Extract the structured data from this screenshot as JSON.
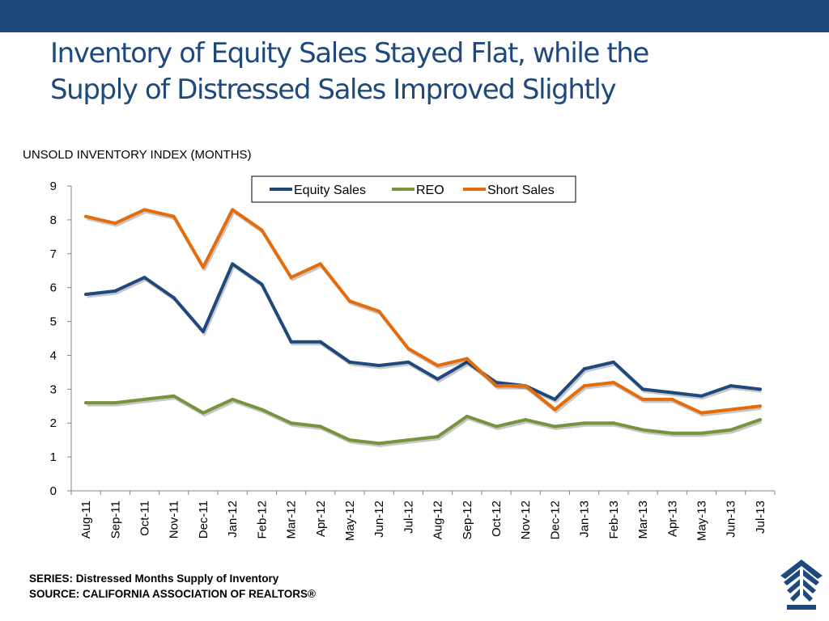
{
  "slide": {
    "title_line1": "Inventory of Equity Sales Stayed Flat, while the",
    "title_line2": "Supply of Distressed Sales Improved Slightly",
    "footer_series": "SERIES: Distressed Months Supply of Inventory",
    "footer_source": "SOURCE:  CALIFORNIA ASSOCIATION OF REALTORS®",
    "header_bar_color": "#1f497d",
    "title_color": "#1f497d",
    "logo_icon": "california-association-of-realtors-logo"
  },
  "chart_data": {
    "type": "line",
    "title": "",
    "ylabel": "UNSOLD INVENTORY INDEX (MONTHS)",
    "xlabel": "",
    "ylim": [
      0,
      9
    ],
    "yticks": [
      0,
      1,
      2,
      3,
      4,
      5,
      6,
      7,
      8,
      9
    ],
    "grid": false,
    "legend_position": "top",
    "categories": [
      "Aug-11",
      "Sep-11",
      "Oct-11",
      "Nov-11",
      "Dec-11",
      "Jan-12",
      "Feb-12",
      "Mar-12",
      "Apr-12",
      "May-12",
      "Jun-12",
      "Jul-12",
      "Aug-12",
      "Sep-12",
      "Oct-12",
      "Nov-12",
      "Dec-12",
      "Jan-13",
      "Feb-13",
      "Mar-13",
      "Apr-13",
      "May-13",
      "Jun-13",
      "Jul-13"
    ],
    "series": [
      {
        "name": "Equity Sales",
        "color": "#1f497d",
        "values": [
          5.8,
          5.9,
          6.3,
          5.7,
          4.7,
          6.7,
          6.1,
          4.4,
          4.4,
          3.8,
          3.7,
          3.8,
          3.3,
          3.8,
          3.2,
          3.1,
          2.7,
          3.6,
          3.8,
          3.0,
          2.9,
          2.8,
          3.1,
          3.0
        ]
      },
      {
        "name": "REO",
        "color": "#77933c",
        "values": [
          2.6,
          2.6,
          2.7,
          2.8,
          2.3,
          2.7,
          2.4,
          2.0,
          1.9,
          1.5,
          1.4,
          1.5,
          1.6,
          2.2,
          1.9,
          2.1,
          1.9,
          2.0,
          2.0,
          1.8,
          1.7,
          1.7,
          1.8,
          2.1
        ]
      },
      {
        "name": "Short Sales",
        "color": "#e46c0a",
        "values": [
          8.1,
          7.9,
          8.3,
          8.1,
          6.6,
          8.3,
          7.7,
          6.3,
          6.7,
          5.6,
          5.3,
          4.2,
          3.7,
          3.9,
          3.1,
          3.1,
          2.4,
          3.1,
          3.2,
          2.7,
          2.7,
          2.3,
          2.4,
          2.5
        ]
      }
    ]
  }
}
